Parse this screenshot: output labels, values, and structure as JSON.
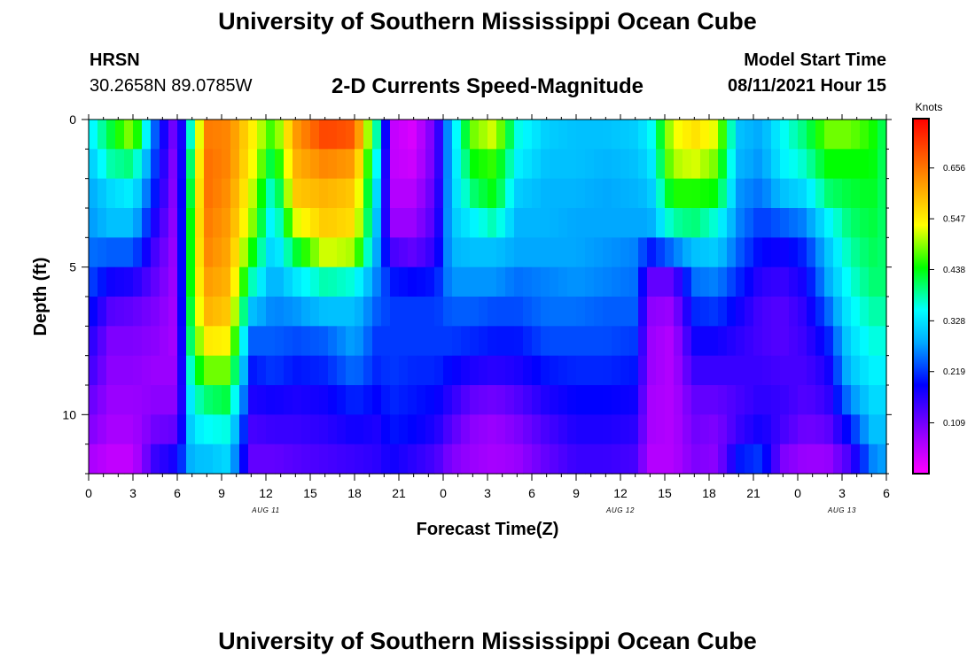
{
  "page": {
    "title_top": "University of Southern Mississippi Ocean Cube",
    "title_bottom": "University of Southern Mississippi Ocean Cube",
    "station": "HRSN",
    "coords": "30.2658N  89.0785W",
    "plot_title": "2-D Currents Speed-Magnitude",
    "model_label": "Model Start Time",
    "model_time": "08/11/2021 Hour 15"
  },
  "chart_data": {
    "type": "heatmap",
    "title": "2-D Currents Speed-Magnitude",
    "xlabel": "Forecast Time(Z)",
    "ylabel": "Depth (ft)",
    "x_range_hours": [
      0,
      54
    ],
    "ylim": [
      0,
      12
    ],
    "y_inverted": true,
    "x_ticks": [
      {
        "h": 0,
        "label": "0"
      },
      {
        "h": 3,
        "label": "3"
      },
      {
        "h": 6,
        "label": "6"
      },
      {
        "h": 9,
        "label": "9"
      },
      {
        "h": 12,
        "label": "12"
      },
      {
        "h": 15,
        "label": "15"
      },
      {
        "h": 18,
        "label": "18"
      },
      {
        "h": 21,
        "label": "21"
      },
      {
        "h": 24,
        "label": "0"
      },
      {
        "h": 27,
        "label": "3"
      },
      {
        "h": 30,
        "label": "6"
      },
      {
        "h": 33,
        "label": "9"
      },
      {
        "h": 36,
        "label": "12"
      },
      {
        "h": 39,
        "label": "15"
      },
      {
        "h": 42,
        "label": "18"
      },
      {
        "h": 45,
        "label": "21"
      },
      {
        "h": 48,
        "label": "0"
      },
      {
        "h": 51,
        "label": "3"
      },
      {
        "h": 54,
        "label": "6"
      }
    ],
    "y_ticks": [
      {
        "v": 0,
        "label": "0"
      },
      {
        "v": 5,
        "label": "5"
      },
      {
        "v": 10,
        "label": "10"
      }
    ],
    "date_labels": [
      {
        "h": 12,
        "label": "AUG 11"
      },
      {
        "h": 36,
        "label": "AUG 12"
      },
      {
        "h": 51,
        "label": "AUG 13"
      }
    ],
    "colorbar": {
      "title": "Knots",
      "min": 0.0,
      "max": 0.76,
      "ticks": [
        "0.656",
        "0.547",
        "0.438",
        "0.328",
        "0.219",
        "0.109"
      ],
      "tick_values": [
        0.656,
        0.547,
        0.438,
        0.328,
        0.219,
        0.109
      ]
    },
    "depth_levels": 12,
    "profiles": [
      {
        "h": 0,
        "v": [
          0.33,
          0.3,
          0.28,
          0.27,
          0.25,
          0.23,
          0.2,
          0.17,
          0.15,
          0.12,
          0.1,
          0.07
        ]
      },
      {
        "h": 1.5,
        "v": [
          0.42,
          0.38,
          0.32,
          0.3,
          0.24,
          0.18,
          0.13,
          0.1,
          0.09,
          0.08,
          0.07,
          0.05
        ]
      },
      {
        "h": 3,
        "v": [
          0.5,
          0.4,
          0.34,
          0.3,
          0.24,
          0.17,
          0.12,
          0.1,
          0.09,
          0.08,
          0.07,
          0.05
        ]
      },
      {
        "h": 4.5,
        "v": [
          0.24,
          0.22,
          0.2,
          0.17,
          0.14,
          0.12,
          0.1,
          0.09,
          0.08,
          0.09,
          0.11,
          0.15
        ]
      },
      {
        "h": 6,
        "v": [
          0.08,
          0.07,
          0.07,
          0.07,
          0.07,
          0.07,
          0.07,
          0.07,
          0.08,
          0.09,
          0.12,
          0.18
        ]
      },
      {
        "h": 7,
        "v": [
          0.4,
          0.44,
          0.46,
          0.48,
          0.48,
          0.48,
          0.46,
          0.44,
          0.4,
          0.36,
          0.33,
          0.3
        ]
      },
      {
        "h": 8,
        "v": [
          0.65,
          0.66,
          0.66,
          0.65,
          0.64,
          0.62,
          0.6,
          0.55,
          0.48,
          0.4,
          0.35,
          0.3
        ]
      },
      {
        "h": 9.5,
        "v": [
          0.64,
          0.64,
          0.63,
          0.62,
          0.61,
          0.6,
          0.58,
          0.54,
          0.48,
          0.42,
          0.36,
          0.32
        ]
      },
      {
        "h": 11,
        "v": [
          0.55,
          0.54,
          0.52,
          0.5,
          0.45,
          0.38,
          0.3,
          0.24,
          0.2,
          0.17,
          0.14,
          0.12
        ]
      },
      {
        "h": 12.5,
        "v": [
          0.45,
          0.4,
          0.35,
          0.32,
          0.3,
          0.28,
          0.26,
          0.24,
          0.22,
          0.18,
          0.15,
          0.12
        ]
      },
      {
        "h": 14,
        "v": [
          0.62,
          0.6,
          0.58,
          0.52,
          0.42,
          0.33,
          0.27,
          0.23,
          0.2,
          0.17,
          0.15,
          0.13
        ]
      },
      {
        "h": 16,
        "v": [
          0.7,
          0.64,
          0.6,
          0.58,
          0.52,
          0.38,
          0.3,
          0.24,
          0.21,
          0.18,
          0.16,
          0.14
        ]
      },
      {
        "h": 18,
        "v": [
          0.68,
          0.62,
          0.58,
          0.56,
          0.5,
          0.36,
          0.3,
          0.28,
          0.25,
          0.21,
          0.18,
          0.15
        ]
      },
      {
        "h": 19.5,
        "v": [
          0.38,
          0.35,
          0.32,
          0.3,
          0.28,
          0.26,
          0.24,
          0.22,
          0.21,
          0.19,
          0.17,
          0.16
        ]
      },
      {
        "h": 20.5,
        "v": [
          0.05,
          0.05,
          0.06,
          0.08,
          0.14,
          0.2,
          0.22,
          0.22,
          0.22,
          0.21,
          0.2,
          0.18
        ]
      },
      {
        "h": 22,
        "v": [
          0.03,
          0.04,
          0.06,
          0.08,
          0.12,
          0.19,
          0.22,
          0.22,
          0.21,
          0.2,
          0.19,
          0.16
        ]
      },
      {
        "h": 23.5,
        "v": [
          0.12,
          0.12,
          0.13,
          0.14,
          0.16,
          0.2,
          0.22,
          0.22,
          0.21,
          0.19,
          0.17,
          0.14
        ]
      },
      {
        "h": 24.5,
        "v": [
          0.3,
          0.3,
          0.3,
          0.3,
          0.29,
          0.27,
          0.24,
          0.22,
          0.19,
          0.16,
          0.13,
          0.1
        ]
      },
      {
        "h": 26,
        "v": [
          0.48,
          0.44,
          0.4,
          0.34,
          0.3,
          0.27,
          0.24,
          0.21,
          0.17,
          0.12,
          0.09,
          0.08
        ]
      },
      {
        "h": 27.5,
        "v": [
          0.52,
          0.46,
          0.44,
          0.38,
          0.3,
          0.27,
          0.23,
          0.2,
          0.16,
          0.11,
          0.08,
          0.07
        ]
      },
      {
        "h": 29,
        "v": [
          0.36,
          0.34,
          0.31,
          0.29,
          0.28,
          0.25,
          0.23,
          0.2,
          0.17,
          0.13,
          0.1,
          0.08
        ]
      },
      {
        "h": 31,
        "v": [
          0.31,
          0.3,
          0.29,
          0.29,
          0.28,
          0.26,
          0.25,
          0.23,
          0.2,
          0.17,
          0.14,
          0.12
        ]
      },
      {
        "h": 33,
        "v": [
          0.3,
          0.3,
          0.29,
          0.28,
          0.28,
          0.27,
          0.25,
          0.23,
          0.21,
          0.19,
          0.17,
          0.15
        ]
      },
      {
        "h": 35,
        "v": [
          0.3,
          0.29,
          0.28,
          0.28,
          0.27,
          0.26,
          0.24,
          0.23,
          0.21,
          0.19,
          0.17,
          0.15
        ]
      },
      {
        "h": 37,
        "v": [
          0.31,
          0.3,
          0.29,
          0.28,
          0.26,
          0.25,
          0.24,
          0.22,
          0.2,
          0.18,
          0.16,
          0.14
        ]
      },
      {
        "h": 38,
        "v": [
          0.34,
          0.32,
          0.3,
          0.28,
          0.2,
          0.12,
          0.09,
          0.08,
          0.08,
          0.07,
          0.07,
          0.06
        ]
      },
      {
        "h": 39.5,
        "v": [
          0.52,
          0.5,
          0.45,
          0.38,
          0.25,
          0.12,
          0.08,
          0.06,
          0.06,
          0.06,
          0.06,
          0.06
        ]
      },
      {
        "h": 41,
        "v": [
          0.56,
          0.52,
          0.45,
          0.4,
          0.3,
          0.25,
          0.21,
          0.18,
          0.15,
          0.12,
          0.11,
          0.1
        ]
      },
      {
        "h": 42.5,
        "v": [
          0.52,
          0.48,
          0.44,
          0.36,
          0.31,
          0.26,
          0.22,
          0.18,
          0.15,
          0.12,
          0.1,
          0.09
        ]
      },
      {
        "h": 44,
        "v": [
          0.3,
          0.29,
          0.27,
          0.26,
          0.24,
          0.21,
          0.18,
          0.16,
          0.15,
          0.14,
          0.15,
          0.2
        ]
      },
      {
        "h": 45.5,
        "v": [
          0.28,
          0.27,
          0.25,
          0.22,
          0.19,
          0.16,
          0.14,
          0.14,
          0.15,
          0.16,
          0.18,
          0.22
        ]
      },
      {
        "h": 47,
        "v": [
          0.35,
          0.34,
          0.3,
          0.24,
          0.18,
          0.15,
          0.13,
          0.13,
          0.14,
          0.15,
          0.14,
          0.1
        ]
      },
      {
        "h": 48.5,
        "v": [
          0.4,
          0.37,
          0.32,
          0.26,
          0.21,
          0.18,
          0.16,
          0.15,
          0.14,
          0.13,
          0.11,
          0.08
        ]
      },
      {
        "h": 50,
        "v": [
          0.48,
          0.44,
          0.4,
          0.34,
          0.3,
          0.28,
          0.24,
          0.2,
          0.17,
          0.15,
          0.12,
          0.08
        ]
      },
      {
        "h": 51.5,
        "v": [
          0.48,
          0.44,
          0.42,
          0.4,
          0.38,
          0.36,
          0.34,
          0.32,
          0.3,
          0.26,
          0.2,
          0.14
        ]
      },
      {
        "h": 53,
        "v": [
          0.45,
          0.44,
          0.43,
          0.42,
          0.41,
          0.4,
          0.38,
          0.36,
          0.34,
          0.32,
          0.3,
          0.26
        ]
      },
      {
        "h": 54,
        "v": [
          0.4,
          0.4,
          0.4,
          0.4,
          0.4,
          0.4,
          0.38,
          0.36,
          0.34,
          0.32,
          0.3,
          0.28
        ]
      }
    ]
  }
}
